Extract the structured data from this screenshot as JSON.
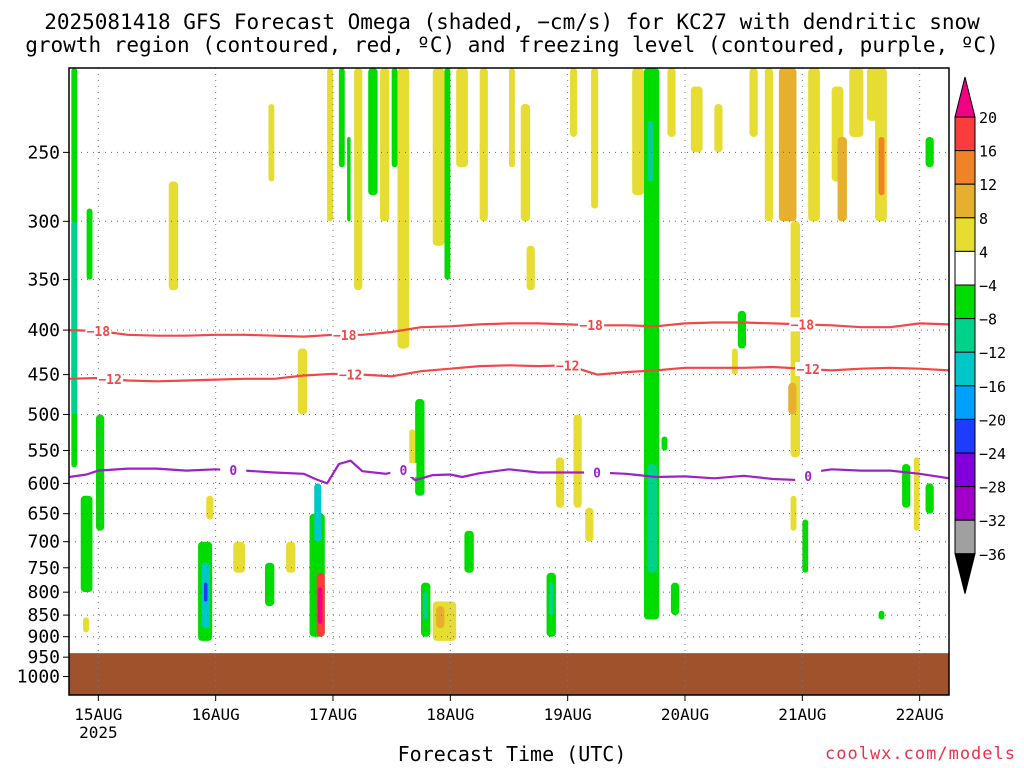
{
  "title_line1": "2025081418 GFS Forecast Omega (shaded, −cm/s) for KC27 with dendritic snow",
  "title_line2": "growth region (contoured, red, ºC) and freezing level (contoured, purple, ºC)",
  "credit": "coolwx.com/models",
  "chart_data": {
    "type": "heatmap",
    "xlabel": "Forecast Time (UTC)",
    "ylabel": "",
    "x_tick_labels": [
      "15AUG",
      "16AUG",
      "17AUG",
      "18AUG",
      "19AUG",
      "20AUG",
      "21AUG",
      "22AUG"
    ],
    "x_year_label": "2025",
    "x_range_days": [
      14.75,
      22.25
    ],
    "y_scale": "log",
    "y_range_hpa": [
      200,
      1050
    ],
    "y_ticks": [
      250,
      300,
      350,
      400,
      450,
      500,
      550,
      600,
      650,
      700,
      750,
      800,
      850,
      900,
      950,
      1000
    ],
    "grid": true,
    "colorbar": {
      "levels": [
        -36,
        -32,
        -28,
        -24,
        -20,
        -16,
        -12,
        -8,
        -4,
        4,
        8,
        12,
        16,
        20
      ],
      "labels": [
        "20",
        "16",
        "12",
        "8",
        "4",
        "−4",
        "−8",
        "−12",
        "−16",
        "−20",
        "−24",
        "−28",
        "−32",
        "−36"
      ],
      "colors": [
        "#000000",
        "#a0a0a0",
        "#a000c8",
        "#8200dc",
        "#1e3cff",
        "#00a0ff",
        "#00c8c8",
        "#00d28c",
        "#00dc00",
        "#ffffff",
        "#e6dc32",
        "#e6af2d",
        "#f08228",
        "#fa3c3c",
        "#f00082"
      ]
    },
    "ground_color": "#a0522d",
    "ground_pressure_hpa": 940,
    "contours": [
      {
        "name": "-18",
        "color": "#f04848",
        "label": "−18",
        "x": [
          14.75,
          15.0,
          15.25,
          15.5,
          15.75,
          16.0,
          16.25,
          16.5,
          16.75,
          17.0,
          17.25,
          17.5,
          17.75,
          18.0,
          18.25,
          18.5,
          18.75,
          19.0,
          19.25,
          19.5,
          19.75,
          20.0,
          20.25,
          20.5,
          20.75,
          21.0,
          21.25,
          21.5,
          21.75,
          22.0,
          22.25
        ],
        "p": [
          400,
          401,
          405,
          406,
          406,
          405,
          405,
          406,
          407,
          405,
          405,
          402,
          397,
          396,
          394,
          393,
          393,
          394,
          395,
          395,
          396,
          393,
          392,
          392,
          393,
          394,
          395,
          397,
          397,
          393,
          394
        ],
        "label_x": [
          15.0,
          17.1,
          19.2,
          21.0
        ]
      },
      {
        "name": "-12",
        "color": "#f04848",
        "label": "−12",
        "x": [
          14.75,
          15.0,
          15.25,
          15.5,
          15.75,
          16.0,
          16.25,
          16.5,
          16.75,
          17.0,
          17.25,
          17.5,
          17.75,
          18.0,
          18.25,
          18.5,
          18.75,
          19.0,
          19.25,
          19.5,
          19.75,
          20.0,
          20.25,
          20.5,
          20.75,
          21.0,
          21.25,
          21.5,
          21.75,
          22.0,
          22.25
        ],
        "p": [
          455,
          454,
          457,
          458,
          457,
          456,
          455,
          455,
          451,
          449,
          450,
          452,
          446,
          443,
          440,
          439,
          440,
          439,
          450,
          447,
          445,
          442,
          442,
          442,
          441,
          443,
          445,
          443,
          442,
          443,
          445
        ],
        "label_x": [
          15.1,
          17.15,
          19.0,
          21.05
        ]
      },
      {
        "name": "0",
        "color": "#a020c8",
        "label": "0",
        "x": [
          14.75,
          14.9,
          15.0,
          15.25,
          15.5,
          15.75,
          16.0,
          16.25,
          16.5,
          16.75,
          16.85,
          16.95,
          17.05,
          17.15,
          17.25,
          17.45,
          17.6,
          17.7,
          17.85,
          18.0,
          18.1,
          18.25,
          18.5,
          18.75,
          19.0,
          19.25,
          19.5,
          19.75,
          20.0,
          20.25,
          20.5,
          20.75,
          21.0,
          21.1,
          21.25,
          21.5,
          21.75,
          22.0,
          22.25
        ],
        "p": [
          590,
          586,
          580,
          577,
          577,
          580,
          578,
          580,
          583,
          585,
          593,
          600,
          570,
          565,
          581,
          585,
          579,
          595,
          587,
          586,
          590,
          584,
          578,
          583,
          583,
          583,
          585,
          590,
          589,
          592,
          588,
          593,
          595,
          582,
          578,
          580,
          580,
          585,
          592
        ],
        "label_x": [
          16.15,
          17.6,
          19.25,
          21.05
        ]
      }
    ],
    "omega_cells": [
      {
        "x0": 14.77,
        "x1": 14.82,
        "p0": 200,
        "p1": 575,
        "c": 8
      },
      {
        "x0": 14.77,
        "x1": 14.82,
        "p0": 300,
        "p1": 500,
        "c": 7
      },
      {
        "x0": 14.85,
        "x1": 14.95,
        "p0": 620,
        "p1": 800,
        "c": 8
      },
      {
        "x0": 14.98,
        "x1": 15.05,
        "p0": 500,
        "p1": 680,
        "c": 8
      },
      {
        "x0": 14.9,
        "x1": 14.95,
        "p0": 290,
        "p1": 350,
        "c": 8
      },
      {
        "x0": 14.87,
        "x1": 14.92,
        "p0": 855,
        "p1": 890,
        "c": 10
      },
      {
        "x0": 15.6,
        "x1": 15.68,
        "p0": 270,
        "p1": 360,
        "c": 10
      },
      {
        "x0": 15.85,
        "x1": 15.97,
        "p0": 700,
        "p1": 910,
        "c": 8
      },
      {
        "x0": 15.88,
        "x1": 15.95,
        "p0": 740,
        "p1": 880,
        "c": 6
      },
      {
        "x0": 15.9,
        "x1": 15.93,
        "p0": 780,
        "p1": 820,
        "c": 4
      },
      {
        "x0": 15.92,
        "x1": 15.98,
        "p0": 620,
        "p1": 660,
        "c": 10
      },
      {
        "x0": 16.15,
        "x1": 16.25,
        "p0": 700,
        "p1": 760,
        "c": 10
      },
      {
        "x0": 16.42,
        "x1": 16.5,
        "p0": 740,
        "p1": 830,
        "c": 8
      },
      {
        "x0": 16.6,
        "x1": 16.68,
        "p0": 700,
        "p1": 760,
        "c": 10
      },
      {
        "x0": 16.45,
        "x1": 16.5,
        "p0": 220,
        "p1": 270,
        "c": 10
      },
      {
        "x0": 16.7,
        "x1": 16.78,
        "p0": 420,
        "p1": 500,
        "c": 10
      },
      {
        "x0": 16.8,
        "x1": 16.93,
        "p0": 650,
        "p1": 900,
        "c": 8
      },
      {
        "x0": 16.84,
        "x1": 16.9,
        "p0": 600,
        "p1": 700,
        "c": 6
      },
      {
        "x0": 16.86,
        "x1": 16.93,
        "p0": 760,
        "p1": 900,
        "c": 13
      },
      {
        "x0": 16.87,
        "x1": 16.91,
        "p0": 790,
        "p1": 870,
        "c": 14
      },
      {
        "x0": 16.95,
        "x1": 17.0,
        "p0": 200,
        "p1": 300,
        "c": 10
      },
      {
        "x0": 17.05,
        "x1": 17.1,
        "p0": 200,
        "p1": 260,
        "c": 8
      },
      {
        "x0": 17.12,
        "x1": 17.15,
        "p0": 240,
        "p1": 300,
        "c": 8
      },
      {
        "x0": 17.18,
        "x1": 17.25,
        "p0": 200,
        "p1": 360,
        "c": 10
      },
      {
        "x0": 17.3,
        "x1": 17.38,
        "p0": 200,
        "p1": 280,
        "c": 8
      },
      {
        "x0": 17.4,
        "x1": 17.48,
        "p0": 200,
        "p1": 300,
        "c": 10
      },
      {
        "x0": 17.5,
        "x1": 17.55,
        "p0": 200,
        "p1": 260,
        "c": 8
      },
      {
        "x0": 17.55,
        "x1": 17.65,
        "p0": 200,
        "p1": 420,
        "c": 10
      },
      {
        "x0": 17.7,
        "x1": 17.78,
        "p0": 480,
        "p1": 620,
        "c": 8
      },
      {
        "x0": 17.65,
        "x1": 17.7,
        "p0": 520,
        "p1": 580,
        "c": 10
      },
      {
        "x0": 17.75,
        "x1": 17.83,
        "p0": 780,
        "p1": 900,
        "c": 8
      },
      {
        "x0": 17.77,
        "x1": 17.81,
        "p0": 800,
        "p1": 860,
        "c": 7
      },
      {
        "x0": 17.85,
        "x1": 18.05,
        "p0": 820,
        "p1": 910,
        "c": 10
      },
      {
        "x0": 17.88,
        "x1": 17.95,
        "p0": 830,
        "p1": 880,
        "c": 11
      },
      {
        "x0": 17.85,
        "x1": 17.95,
        "p0": 200,
        "p1": 320,
        "c": 10
      },
      {
        "x0": 17.95,
        "x1": 18.0,
        "p0": 200,
        "p1": 350,
        "c": 8
      },
      {
        "x0": 18.05,
        "x1": 18.15,
        "p0": 200,
        "p1": 260,
        "c": 10
      },
      {
        "x0": 18.12,
        "x1": 18.2,
        "p0": 680,
        "p1": 760,
        "c": 8
      },
      {
        "x0": 18.25,
        "x1": 18.32,
        "p0": 200,
        "p1": 300,
        "c": 10
      },
      {
        "x0": 18.5,
        "x1": 18.55,
        "p0": 200,
        "p1": 260,
        "c": 10
      },
      {
        "x0": 18.6,
        "x1": 18.68,
        "p0": 220,
        "p1": 300,
        "c": 10
      },
      {
        "x0": 18.65,
        "x1": 18.72,
        "p0": 320,
        "p1": 360,
        "c": 10
      },
      {
        "x0": 18.82,
        "x1": 18.9,
        "p0": 760,
        "p1": 900,
        "c": 8
      },
      {
        "x0": 18.84,
        "x1": 18.88,
        "p0": 780,
        "p1": 850,
        "c": 7
      },
      {
        "x0": 18.9,
        "x1": 18.97,
        "p0": 560,
        "p1": 640,
        "c": 10
      },
      {
        "x0": 19.05,
        "x1": 19.12,
        "p0": 500,
        "p1": 640,
        "c": 10
      },
      {
        "x0": 19.15,
        "x1": 19.22,
        "p0": 640,
        "p1": 700,
        "c": 10
      },
      {
        "x0": 19.02,
        "x1": 19.08,
        "p0": 200,
        "p1": 240,
        "c": 10
      },
      {
        "x0": 19.2,
        "x1": 19.26,
        "p0": 200,
        "p1": 290,
        "c": 10
      },
      {
        "x0": 19.55,
        "x1": 19.65,
        "p0": 200,
        "p1": 280,
        "c": 10
      },
      {
        "x0": 19.65,
        "x1": 19.78,
        "p0": 200,
        "p1": 860,
        "c": 8
      },
      {
        "x0": 19.68,
        "x1": 19.73,
        "p0": 230,
        "p1": 270,
        "c": 7
      },
      {
        "x0": 19.68,
        "x1": 19.76,
        "p0": 570,
        "p1": 760,
        "c": 7
      },
      {
        "x0": 19.8,
        "x1": 19.85,
        "p0": 530,
        "p1": 550,
        "c": 8
      },
      {
        "x0": 19.85,
        "x1": 19.92,
        "p0": 200,
        "p1": 240,
        "c": 10
      },
      {
        "x0": 19.88,
        "x1": 19.95,
        "p0": 780,
        "p1": 850,
        "c": 8
      },
      {
        "x0": 20.05,
        "x1": 20.15,
        "p0": 210,
        "p1": 250,
        "c": 10
      },
      {
        "x0": 20.25,
        "x1": 20.32,
        "p0": 220,
        "p1": 250,
        "c": 10
      },
      {
        "x0": 20.45,
        "x1": 20.52,
        "p0": 380,
        "p1": 420,
        "c": 8
      },
      {
        "x0": 20.4,
        "x1": 20.45,
        "p0": 420,
        "p1": 450,
        "c": 10
      },
      {
        "x0": 20.55,
        "x1": 20.62,
        "p0": 200,
        "p1": 240,
        "c": 10
      },
      {
        "x0": 20.68,
        "x1": 20.75,
        "p0": 200,
        "p1": 300,
        "c": 10
      },
      {
        "x0": 20.8,
        "x1": 20.95,
        "p0": 200,
        "p1": 300,
        "c": 11
      },
      {
        "x0": 20.9,
        "x1": 20.98,
        "p0": 300,
        "p1": 560,
        "c": 10
      },
      {
        "x0": 20.88,
        "x1": 20.95,
        "p0": 460,
        "p1": 500,
        "c": 11
      },
      {
        "x0": 21.0,
        "x1": 21.05,
        "p0": 660,
        "p1": 760,
        "c": 8
      },
      {
        "x0": 20.9,
        "x1": 20.95,
        "p0": 620,
        "p1": 680,
        "c": 10
      },
      {
        "x0": 21.05,
        "x1": 21.15,
        "p0": 200,
        "p1": 300,
        "c": 10
      },
      {
        "x0": 21.25,
        "x1": 21.35,
        "p0": 210,
        "p1": 270,
        "c": 10
      },
      {
        "x0": 21.3,
        "x1": 21.38,
        "p0": 240,
        "p1": 300,
        "c": 11
      },
      {
        "x0": 21.4,
        "x1": 21.52,
        "p0": 200,
        "p1": 240,
        "c": 10
      },
      {
        "x0": 21.55,
        "x1": 21.65,
        "p0": 200,
        "p1": 230,
        "c": 10
      },
      {
        "x0": 21.62,
        "x1": 21.72,
        "p0": 200,
        "p1": 300,
        "c": 10
      },
      {
        "x0": 21.65,
        "x1": 21.7,
        "p0": 240,
        "p1": 280,
        "c": 12
      },
      {
        "x0": 21.85,
        "x1": 21.92,
        "p0": 570,
        "p1": 640,
        "c": 8
      },
      {
        "x0": 21.95,
        "x1": 22.0,
        "p0": 560,
        "p1": 680,
        "c": 10
      },
      {
        "x0": 22.05,
        "x1": 22.12,
        "p0": 600,
        "p1": 650,
        "c": 8
      },
      {
        "x0": 22.05,
        "x1": 22.12,
        "p0": 240,
        "p1": 260,
        "c": 8
      },
      {
        "x0": 21.65,
        "x1": 21.7,
        "p0": 840,
        "p1": 860,
        "c": 8
      }
    ]
  }
}
